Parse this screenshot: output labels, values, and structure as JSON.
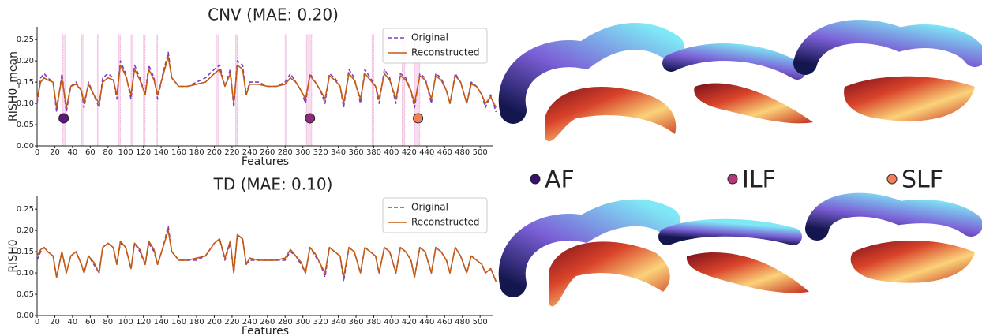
{
  "chart_data": [
    {
      "type": "line",
      "title": "CNV (MAE: 0.20)",
      "xlabel": "Features",
      "ylabel": "RISH0_mean",
      "x": [
        0,
        4,
        8,
        12,
        18,
        22,
        28,
        33,
        38,
        44,
        50,
        53,
        58,
        64,
        70,
        74,
        80,
        86,
        90,
        94,
        100,
        106,
        110,
        116,
        122,
        126,
        132,
        136,
        142,
        148,
        152,
        160,
        170,
        180,
        190,
        200,
        206,
        212,
        218,
        222,
        226,
        232,
        236,
        240,
        250,
        260,
        270,
        280,
        286,
        292,
        298,
        303,
        308,
        314,
        320,
        325,
        330,
        336,
        342,
        346,
        352,
        358,
        365,
        370,
        376,
        382,
        386,
        392,
        398,
        405,
        410,
        416,
        422,
        426,
        432,
        438,
        445,
        450,
        456,
        462,
        466,
        472,
        478,
        485,
        490,
        496,
        502,
        506,
        512,
        518
      ],
      "series": [
        {
          "name": "Original",
          "color": "#7b3fc4",
          "dashed": true,
          "values": [
            0.1,
            0.16,
            0.17,
            0.16,
            0.15,
            0.08,
            0.17,
            0.08,
            0.14,
            0.15,
            0.13,
            0.09,
            0.15,
            0.12,
            0.09,
            0.16,
            0.17,
            0.16,
            0.11,
            0.2,
            0.17,
            0.11,
            0.19,
            0.16,
            0.12,
            0.19,
            0.16,
            0.11,
            0.17,
            0.22,
            0.16,
            0.14,
            0.14,
            0.15,
            0.16,
            0.18,
            0.19,
            0.14,
            0.18,
            0.09,
            0.2,
            0.19,
            0.12,
            0.15,
            0.15,
            0.14,
            0.14,
            0.15,
            0.17,
            0.15,
            0.13,
            0.1,
            0.17,
            0.15,
            0.13,
            0.1,
            0.17,
            0.16,
            0.14,
            0.09,
            0.18,
            0.16,
            0.1,
            0.18,
            0.16,
            0.14,
            0.1,
            0.18,
            0.16,
            0.1,
            0.17,
            0.16,
            0.13,
            0.09,
            0.17,
            0.16,
            0.1,
            0.17,
            0.16,
            0.13,
            0.1,
            0.17,
            0.15,
            0.1,
            0.15,
            0.14,
            0.12,
            0.09,
            0.12,
            0.08
          ]
        },
        {
          "name": "Reconstructed",
          "color": "#c55a11",
          "dashed": false,
          "values": [
            0.11,
            0.15,
            0.16,
            0.155,
            0.15,
            0.09,
            0.16,
            0.09,
            0.14,
            0.145,
            0.13,
            0.1,
            0.145,
            0.12,
            0.1,
            0.15,
            0.16,
            0.155,
            0.12,
            0.19,
            0.165,
            0.12,
            0.18,
            0.155,
            0.12,
            0.18,
            0.155,
            0.12,
            0.165,
            0.21,
            0.16,
            0.14,
            0.14,
            0.145,
            0.15,
            0.17,
            0.18,
            0.14,
            0.17,
            0.1,
            0.19,
            0.18,
            0.12,
            0.145,
            0.145,
            0.14,
            0.14,
            0.145,
            0.16,
            0.15,
            0.13,
            0.11,
            0.165,
            0.15,
            0.13,
            0.11,
            0.165,
            0.155,
            0.14,
            0.1,
            0.17,
            0.155,
            0.11,
            0.17,
            0.155,
            0.14,
            0.11,
            0.17,
            0.155,
            0.11,
            0.165,
            0.155,
            0.13,
            0.1,
            0.165,
            0.155,
            0.11,
            0.165,
            0.155,
            0.13,
            0.1,
            0.165,
            0.15,
            0.1,
            0.145,
            0.14,
            0.12,
            0.1,
            0.115,
            0.09
          ]
        }
      ],
      "highlight_spans": [
        [
          29,
          32
        ],
        [
          50,
          53
        ],
        [
          68,
          70
        ],
        [
          92,
          94
        ],
        [
          106,
          108
        ],
        [
          120,
          122
        ],
        [
          134,
          136
        ],
        [
          202,
          205
        ],
        [
          224,
          226
        ],
        [
          280,
          282
        ],
        [
          304,
          310
        ],
        [
          378,
          380
        ],
        [
          412,
          415
        ],
        [
          426,
          432
        ]
      ],
      "highlight_color": "#e377c2",
      "markers": [
        {
          "x": 30,
          "y": 0.065,
          "color": "#5b1a7a"
        },
        {
          "x": 308,
          "y": 0.065,
          "color": "#8e2a7a"
        },
        {
          "x": 430,
          "y": 0.065,
          "color": "#f08058"
        }
      ],
      "xlim": [
        0,
        515
      ],
      "ylim": [
        0,
        0.28
      ],
      "xticks": [
        0,
        20,
        40,
        60,
        80,
        100,
        120,
        140,
        160,
        180,
        200,
        220,
        240,
        260,
        280,
        300,
        320,
        340,
        360,
        380,
        400,
        420,
        440,
        460,
        480,
        500
      ],
      "yticks": [
        {
          "value": 0,
          "label": "0.00"
        },
        {
          "value": 0.05,
          "label": "0.05"
        },
        {
          "value": 0.1,
          "label": "0.10"
        },
        0.15,
        {
          "value": 0.2,
          "label": "0.20"
        },
        0.25
      ],
      "legend": "upper right"
    },
    {
      "type": "line",
      "title": "TD (MAE: 0.10)",
      "xlabel": "Features",
      "ylabel": "RISH0",
      "x": [
        0,
        4,
        8,
        12,
        18,
        22,
        28,
        33,
        38,
        44,
        50,
        53,
        58,
        64,
        70,
        74,
        80,
        86,
        90,
        94,
        100,
        106,
        110,
        116,
        122,
        126,
        132,
        136,
        142,
        148,
        152,
        160,
        170,
        180,
        190,
        200,
        206,
        212,
        218,
        222,
        226,
        232,
        236,
        240,
        250,
        260,
        270,
        280,
        286,
        292,
        298,
        303,
        308,
        314,
        320,
        325,
        330,
        336,
        342,
        346,
        352,
        358,
        365,
        370,
        376,
        382,
        386,
        392,
        398,
        405,
        410,
        416,
        422,
        426,
        432,
        438,
        445,
        450,
        456,
        462,
        466,
        472,
        478,
        485,
        490,
        496,
        502,
        506,
        512,
        518
      ],
      "series": [
        {
          "name": "Original",
          "color": "#7b3fc4",
          "dashed": true,
          "values": [
            0.13,
            0.15,
            0.16,
            0.15,
            0.14,
            0.09,
            0.15,
            0.1,
            0.14,
            0.15,
            0.12,
            0.1,
            0.14,
            0.12,
            0.1,
            0.16,
            0.17,
            0.16,
            0.12,
            0.17,
            0.16,
            0.11,
            0.17,
            0.15,
            0.12,
            0.17,
            0.15,
            0.12,
            0.16,
            0.21,
            0.15,
            0.13,
            0.13,
            0.13,
            0.14,
            0.17,
            0.18,
            0.13,
            0.17,
            0.1,
            0.19,
            0.18,
            0.12,
            0.13,
            0.13,
            0.13,
            0.13,
            0.13,
            0.15,
            0.14,
            0.12,
            0.1,
            0.16,
            0.14,
            0.12,
            0.09,
            0.16,
            0.15,
            0.14,
            0.08,
            0.16,
            0.15,
            0.1,
            0.16,
            0.15,
            0.14,
            0.1,
            0.16,
            0.15,
            0.1,
            0.16,
            0.15,
            0.13,
            0.09,
            0.16,
            0.15,
            0.1,
            0.16,
            0.15,
            0.13,
            0.1,
            0.16,
            0.14,
            0.1,
            0.14,
            0.13,
            0.12,
            0.1,
            0.11,
            0.08
          ]
        },
        {
          "name": "Reconstructed",
          "color": "#c55a11",
          "dashed": false,
          "values": [
            0.14,
            0.155,
            0.16,
            0.15,
            0.14,
            0.09,
            0.15,
            0.1,
            0.14,
            0.15,
            0.12,
            0.1,
            0.14,
            0.125,
            0.1,
            0.16,
            0.17,
            0.16,
            0.12,
            0.175,
            0.16,
            0.11,
            0.17,
            0.155,
            0.12,
            0.175,
            0.155,
            0.12,
            0.16,
            0.2,
            0.15,
            0.13,
            0.13,
            0.135,
            0.14,
            0.17,
            0.18,
            0.135,
            0.175,
            0.1,
            0.19,
            0.18,
            0.12,
            0.135,
            0.13,
            0.13,
            0.13,
            0.135,
            0.155,
            0.14,
            0.125,
            0.1,
            0.16,
            0.145,
            0.12,
            0.1,
            0.16,
            0.15,
            0.14,
            0.09,
            0.16,
            0.15,
            0.1,
            0.16,
            0.15,
            0.14,
            0.1,
            0.16,
            0.15,
            0.1,
            0.16,
            0.15,
            0.13,
            0.09,
            0.16,
            0.15,
            0.1,
            0.16,
            0.15,
            0.13,
            0.1,
            0.16,
            0.14,
            0.1,
            0.14,
            0.13,
            0.12,
            0.1,
            0.11,
            0.08
          ]
        }
      ],
      "xlim": [
        0,
        515
      ],
      "ylim": [
        0,
        0.28
      ],
      "xticks": [
        0,
        20,
        40,
        60,
        80,
        100,
        120,
        140,
        160,
        180,
        200,
        220,
        240,
        260,
        280,
        300,
        320,
        340,
        360,
        380,
        400,
        420,
        440,
        460,
        480,
        500
      ],
      "yticks": [
        {
          "value": 0,
          "label": "0.00"
        },
        {
          "value": 0.05,
          "label": "0.05"
        },
        {
          "value": 0.1,
          "label": "0.10"
        },
        0.15,
        {
          "value": 0.2,
          "label": "0.20"
        },
        0.25
      ],
      "legend": "upper right"
    }
  ],
  "tract_legend": [
    {
      "label": "AF",
      "color": "#3b0f70"
    },
    {
      "label": "ILF",
      "color": "#b5367a"
    },
    {
      "label": "SLF",
      "color": "#f08058"
    }
  ]
}
